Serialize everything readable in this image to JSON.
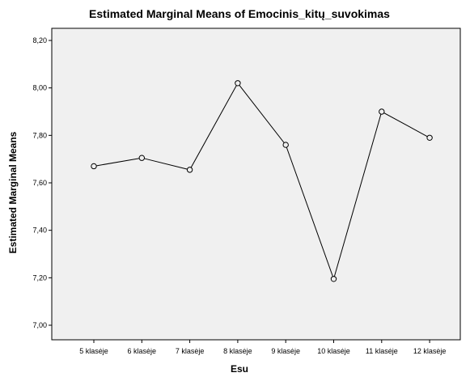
{
  "chart_data": {
    "type": "line",
    "title": "Estimated Marginal Means of Emocinis_kitų_suvokimas",
    "xlabel": "Esu",
    "ylabel": "Estimated Marginal Means",
    "categories": [
      "5 klasėje",
      "6 klasėje",
      "7 klasėje",
      "8 klasėje",
      "9 klasėje",
      "10 klasėje",
      "11 klasėje",
      "12 klasėje"
    ],
    "values": [
      7.67,
      7.705,
      7.655,
      8.02,
      7.76,
      7.195,
      7.9,
      7.79
    ],
    "ylim": [
      7.0,
      8.2
    ],
    "yticks": [
      "7,00",
      "7,20",
      "7,40",
      "7,60",
      "7,80",
      "8,00",
      "8,20"
    ],
    "grid": false,
    "legend": "none",
    "colors": {
      "plot_background": "#f0f0f0",
      "line": "#000000",
      "marker_fill": "#f0f0f0"
    }
  }
}
